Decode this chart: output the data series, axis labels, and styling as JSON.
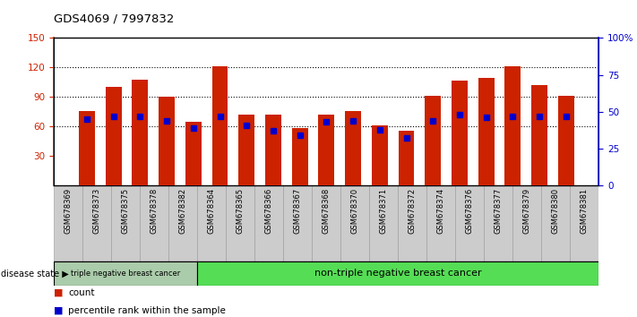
{
  "title": "GDS4069 / 7997832",
  "samples": [
    "GSM678369",
    "GSM678373",
    "GSM678375",
    "GSM678378",
    "GSM678382",
    "GSM678364",
    "GSM678365",
    "GSM678366",
    "GSM678367",
    "GSM678368",
    "GSM678370",
    "GSM678371",
    "GSM678372",
    "GSM678374",
    "GSM678376",
    "GSM678377",
    "GSM678379",
    "GSM678380",
    "GSM678381"
  ],
  "counts": [
    76,
    100,
    108,
    90,
    65,
    121,
    72,
    72,
    58,
    72,
    76,
    61,
    56,
    91,
    107,
    109,
    121,
    102,
    91
  ],
  "percentiles": [
    45,
    47,
    47,
    44,
    39,
    47,
    41,
    37,
    34,
    43,
    44,
    38,
    32,
    44,
    48,
    46,
    47,
    47,
    47
  ],
  "group1_count": 5,
  "group1_label": "triple negative breast cancer",
  "group2_label": "non-triple negative breast cancer",
  "left_ylim": [
    0,
    150
  ],
  "right_ylim": [
    0,
    100
  ],
  "left_yticks": [
    30,
    60,
    90,
    120,
    150
  ],
  "right_yticks": [
    0,
    25,
    50,
    75,
    100
  ],
  "right_yticklabels": [
    "0",
    "25",
    "50",
    "75",
    "100%"
  ],
  "bar_color": "#cc2200",
  "blue_color": "#0000cc",
  "bg_color": "#ffffff",
  "left_axis_color": "#cc2200",
  "right_axis_color": "#0000cc",
  "group1_bg": "#aaccaa",
  "group2_bg": "#55dd55",
  "sample_bg": "#cccccc",
  "disease_state_label": "disease state",
  "legend_count": "count",
  "legend_pct": "percentile rank within the sample"
}
